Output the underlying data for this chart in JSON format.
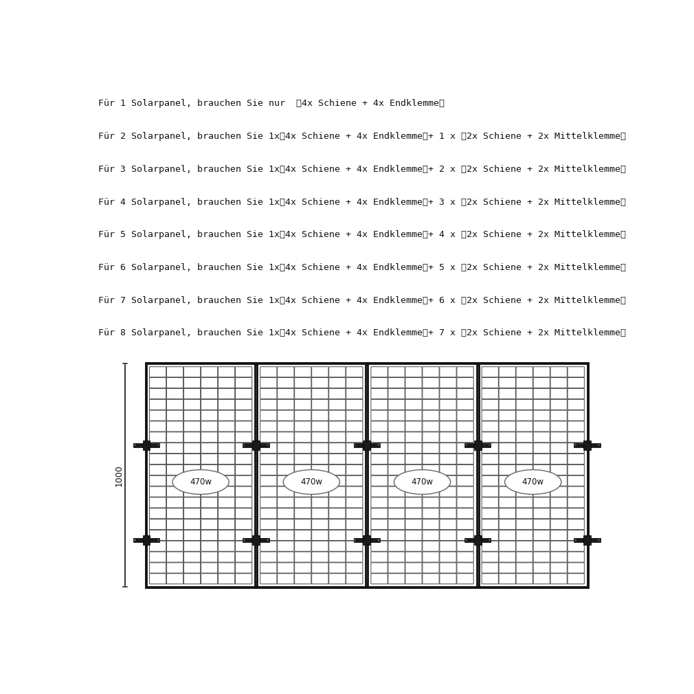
{
  "lines": [
    "Für 1 Solarpanel, brauchen Sie nur  【4x Schiene + 4x Endklemme】",
    "Für 2 Solarpanel, brauchen Sie 1x【4x Schiene + 4x Endklemme】+ 1 x 【2x Schiene + 2x Mittelklemme】",
    "Für 3 Solarpanel, brauchen Sie 1x【4x Schiene + 4x Endklemme】+ 2 x 【2x Schiene + 2x Mittelklemme】",
    "Für 4 Solarpanel, brauchen Sie 1x【4x Schiene + 4x Endklemme】+ 3 x 【2x Schiene + 2x Mittelklemme】",
    "Für 5 Solarpanel, brauchen Sie 1x【4x Schiene + 4x Endklemme】+ 4 x 【2x Schiene + 2x Mittelklemme】",
    "Für 6 Solarpanel, brauchen Sie 1x【4x Schiene + 4x Endklemme】+ 5 x 【2x Schiene + 2x Mittelklemme】",
    "Für 7 Solarpanel, brauchen Sie 1x【4x Schiene + 4x Endklemme】+ 6 x 【2x Schiene + 2x Mittelklemme】",
    "Für 8 Solarpanel, brauchen Sie 1x【4x Schiene + 4x Endklemme】+ 7 x 【2x Schiene + 2x Mittelklemme】"
  ],
  "text_fontsize": 9.5,
  "text_color": "#111111",
  "bg_color": "#ffffff",
  "diagram_label": "1000",
  "panel_label": "470w",
  "num_panels": 4,
  "panel_border_color": "#111111",
  "cell_facecolor": "#ffffff",
  "cell_edgecolor": "#444444",
  "clamp_color": "#1a1a1a",
  "n_cols": 6,
  "n_rows": 20
}
